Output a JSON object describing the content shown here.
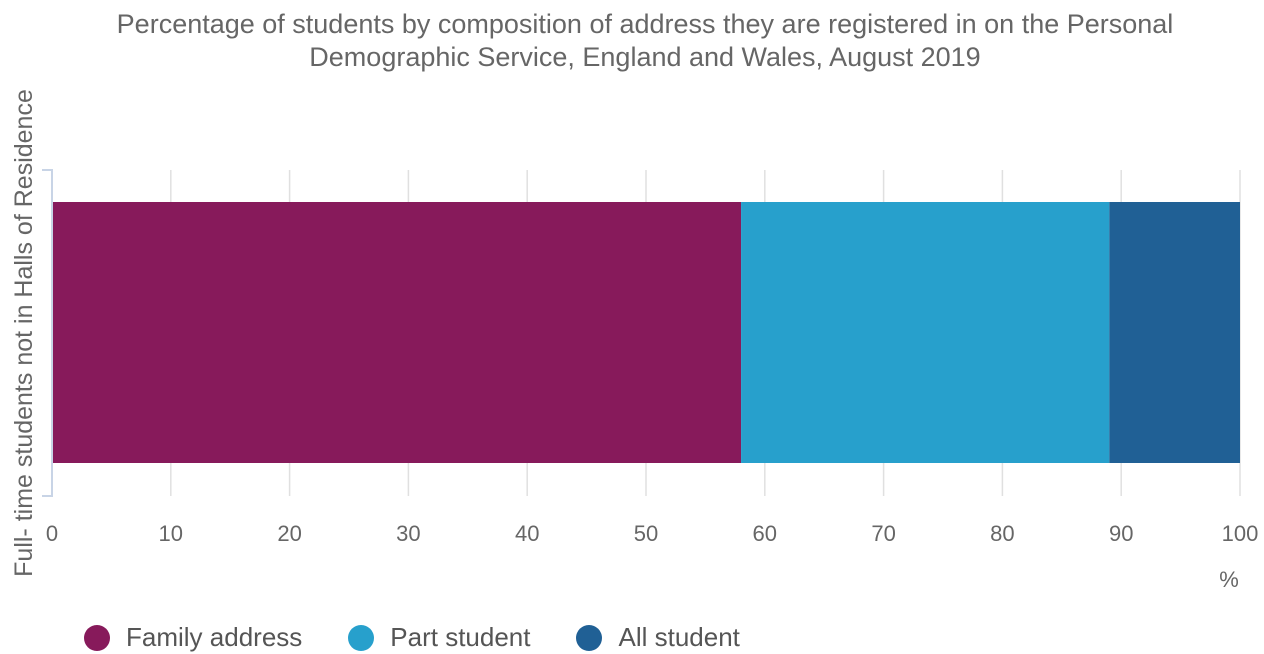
{
  "chart_data": {
    "type": "bar",
    "orientation": "horizontal",
    "stacked": true,
    "title": "Percentage of students by composition of address they are registered in on the Personal Demographic Service, England and Wales, August 2019",
    "title_lines": [
      "Percentage of students by composition of address they are registered in on the Personal",
      "Demographic Service, England and Wales, August 2019"
    ],
    "categories": [
      "Full- time students not in Halls of Residence"
    ],
    "series": [
      {
        "name": "Family address",
        "values": [
          58.0
        ],
        "color": "#871A5B"
      },
      {
        "name": "Part student",
        "values": [
          31.0
        ],
        "color": "#27A0CC"
      },
      {
        "name": "All student",
        "values": [
          11.0
        ],
        "color": "#206095"
      }
    ],
    "xlim": [
      0,
      100
    ],
    "xticks": [
      "0",
      "10",
      "20",
      "30",
      "40",
      "50",
      "60",
      "70",
      "80",
      "90",
      "100"
    ],
    "xlabel": "%",
    "ylabel": "Full- time students not in Halls of Residence",
    "grid": true,
    "legend_position": "bottom-left"
  }
}
